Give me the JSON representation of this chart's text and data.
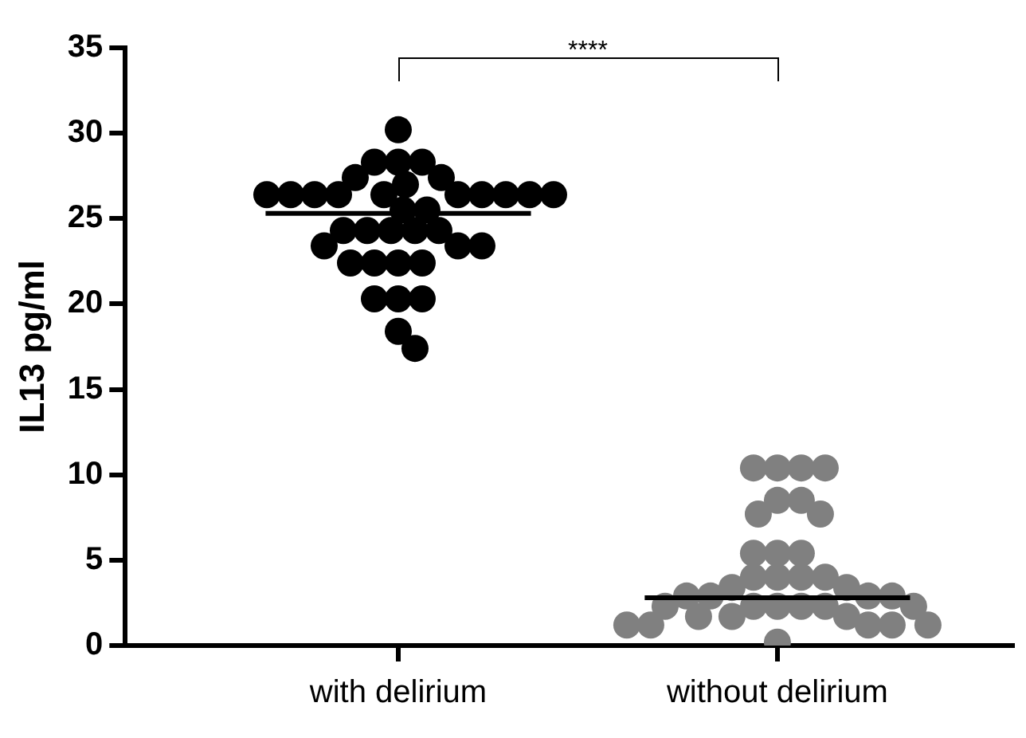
{
  "chart_data": {
    "type": "scatter",
    "ylabel": "IL13 pg/ml",
    "categories": [
      "with delirium",
      "without delirium"
    ],
    "series": [
      {
        "type": "scatter",
        "color": "#000000",
        "marker": "circle",
        "x": [
          "with delirium",
          "with delirium",
          "with delirium",
          "with delirium",
          "with delirium",
          "with delirium",
          "with delirium",
          "with delirium",
          "with delirium",
          "with delirium",
          "with delirium",
          "with delirium",
          "with delirium",
          "with delirium",
          "with delirium",
          "with delirium",
          "with delirium",
          "with delirium",
          "with delirium",
          "with delirium",
          "with delirium",
          "with delirium",
          "with delirium",
          "with delirium",
          "with delirium",
          "with delirium",
          "with delirium",
          "with delirium",
          "with delirium",
          "with delirium",
          "with delirium",
          "with delirium",
          "with delirium",
          "with delirium",
          "with delirium",
          "with delirium"
        ],
        "values": [
          30.2,
          28.3,
          28.3,
          28.3,
          27.4,
          27.4,
          27.0,
          26.4,
          26.4,
          26.4,
          26.4,
          26.4,
          26.4,
          26.4,
          26.4,
          26.4,
          26.4,
          25.5,
          25.5,
          24.3,
          24.3,
          24.3,
          24.3,
          24.3,
          23.4,
          23.4,
          23.4,
          22.4,
          22.4,
          22.4,
          22.4,
          20.3,
          20.3,
          20.3,
          18.4,
          17.4
        ]
      },
      {
        "type": "scatter",
        "color": "#808080",
        "marker": "circle",
        "x": [
          "without delirium",
          "without delirium",
          "without delirium",
          "without delirium",
          "without delirium",
          "without delirium",
          "without delirium",
          "without delirium",
          "without delirium",
          "without delirium",
          "without delirium",
          "without delirium",
          "without delirium",
          "without delirium",
          "without delirium",
          "without delirium",
          "without delirium",
          "without delirium",
          "without delirium",
          "without delirium",
          "without delirium",
          "without delirium",
          "without delirium",
          "without delirium",
          "without delirium",
          "without delirium",
          "without delirium",
          "without delirium",
          "without delirium",
          "without delirium",
          "without delirium",
          "without delirium",
          "without delirium",
          "without delirium",
          "without delirium",
          "without delirium"
        ],
        "values": [
          10.4,
          10.4,
          10.4,
          10.4,
          8.5,
          8.5,
          7.7,
          7.7,
          5.4,
          5.4,
          5.4,
          4.0,
          4.0,
          4.0,
          4.0,
          3.4,
          3.4,
          2.9,
          2.9,
          2.9,
          2.9,
          2.3,
          2.3,
          2.3,
          2.3,
          2.3,
          2.3,
          1.7,
          1.7,
          1.7,
          1.2,
          1.2,
          1.2,
          1.2,
          1.2,
          0.2
        ]
      }
    ],
    "ref_lines": [
      {
        "axis": "y",
        "value": 25.3,
        "color": "#000000"
      },
      {
        "axis": "y",
        "value": 2.8,
        "color": "#000000"
      }
    ],
    "ylim": [
      0,
      35
    ],
    "yticks": [
      0,
      5,
      10,
      15,
      20,
      25,
      30,
      35
    ],
    "grid": false,
    "legend": false,
    "annotations": [
      "****"
    ]
  }
}
